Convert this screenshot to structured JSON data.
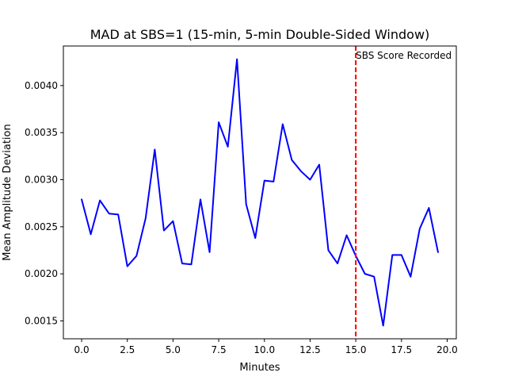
{
  "chart_data": {
    "type": "line",
    "title": "MAD at SBS=1 (15-min, 5-min Double-Sided Window)",
    "xlabel": "Minutes",
    "ylabel": "Mean Amplitude Deviation",
    "xlim": [
      -1.0,
      20.5
    ],
    "ylim": [
      0.00131,
      0.00442
    ],
    "xticks": [
      0.0,
      2.5,
      5.0,
      7.5,
      10.0,
      12.5,
      15.0,
      17.5,
      20.0
    ],
    "xtick_labels": [
      "0.0",
      "2.5",
      "5.0",
      "7.5",
      "10.0",
      "12.5",
      "15.0",
      "17.5",
      "20.0"
    ],
    "yticks": [
      0.0015,
      0.002,
      0.0025,
      0.003,
      0.0035,
      0.004
    ],
    "ytick_labels": [
      "0.0015",
      "0.0020",
      "0.0025",
      "0.0030",
      "0.0035",
      "0.0040"
    ],
    "grid": false,
    "series": [
      {
        "color": "#0000ff",
        "x": [
          0.0,
          0.5,
          1.0,
          1.5,
          2.0,
          2.5,
          3.0,
          3.5,
          4.0,
          4.5,
          5.0,
          5.5,
          6.0,
          6.5,
          7.0,
          7.5,
          8.0,
          8.5,
          9.0,
          9.5,
          10.0,
          10.5,
          11.0,
          11.5,
          12.0,
          12.5,
          13.0,
          13.5,
          14.0,
          14.5,
          15.0,
          15.5,
          16.0,
          16.5,
          17.0,
          17.5,
          18.0,
          18.5,
          19.0,
          19.5
        ],
        "values": [
          0.00279,
          0.00242,
          0.00278,
          0.00264,
          0.00263,
          0.00208,
          0.00219,
          0.00259,
          0.00332,
          0.00246,
          0.00256,
          0.00211,
          0.0021,
          0.00279,
          0.00223,
          0.00361,
          0.00335,
          0.00428,
          0.00274,
          0.00238,
          0.00299,
          0.00298,
          0.00359,
          0.00321,
          0.00309,
          0.003,
          0.00316,
          0.00225,
          0.00211,
          0.00241,
          0.00219,
          0.002,
          0.00197,
          0.00145,
          0.0022,
          0.0022,
          0.00197,
          0.00248,
          0.0027,
          0.00223
        ]
      }
    ],
    "annotations": [
      {
        "type": "vline",
        "x": 15.0,
        "color": "#ff0000",
        "style": "dashed",
        "label": "SBS Score Recorded"
      }
    ]
  }
}
